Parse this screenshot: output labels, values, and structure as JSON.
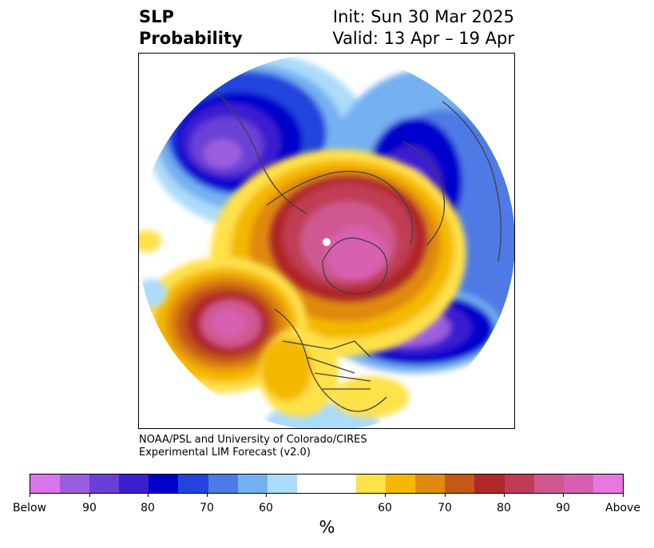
{
  "title": {
    "left_line1": "SLP",
    "left_line2": "Probability",
    "right_line1": "Init: Sun 30 Mar 2025",
    "right_line2": "Valid: 13 Apr – 19 Apr"
  },
  "credit": {
    "line1": "NOAA/PSL and University of Colorado/CIRES",
    "line2": "Experimental LIM Forecast (v2.0)"
  },
  "colorbar": {
    "unit": "%",
    "colors": [
      "#d875e8",
      "#9b5de0",
      "#6a3fd6",
      "#3b1fd0",
      "#0000cc",
      "#2244dd",
      "#4f7ae6",
      "#74b0f0",
      "#acdcfa",
      "#ffffff",
      "#ffffff",
      "#ffe148",
      "#f5b800",
      "#e08a10",
      "#c45818",
      "#b02828",
      "#c03c55",
      "#d05890",
      "#d860b0",
      "#e878e0"
    ],
    "tick_labels": [
      "Below",
      "90",
      "80",
      "70",
      "60",
      "60",
      "70",
      "80",
      "90",
      "Above"
    ]
  },
  "legend_colors": {
    "below_strong": "#9b5de0",
    "below_mid": "#0000cc",
    "below_weak": "#74b0f0",
    "above_weak": "#ffe148",
    "above_mid": "#e08a10",
    "above_strong": "#d05890"
  }
}
